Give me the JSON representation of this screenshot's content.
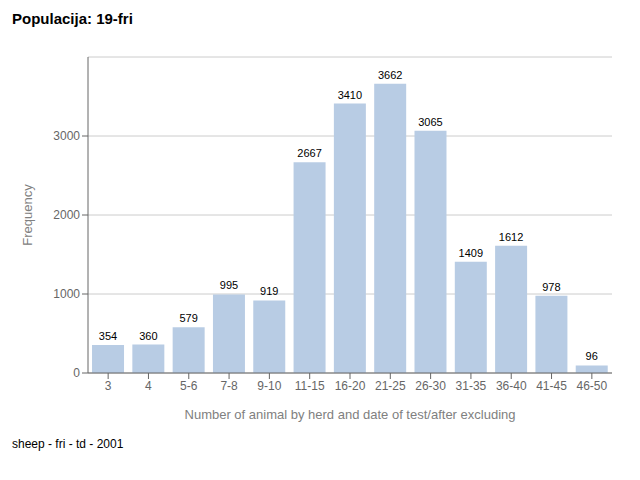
{
  "chart_data": {
    "type": "bar",
    "title": "Populacija: 19-fri",
    "xlabel": "Number of animal by herd and date of test/after excluding",
    "ylabel": "Frequency",
    "annotations": [
      "sheep - fri - td - 2001"
    ],
    "categories": [
      "3",
      "4",
      "5-6",
      "7-8",
      "9-10",
      "11-15",
      "16-20",
      "21-25",
      "26-30",
      "31-35",
      "36-40",
      "41-45",
      "46-50"
    ],
    "values": [
      354,
      360,
      579,
      995,
      919,
      2667,
      3410,
      3662,
      3065,
      1409,
      1612,
      978,
      96
    ],
    "color": "#b8cce4",
    "ylim": [
      0,
      4000
    ],
    "yticks": [
      0,
      1000,
      2000,
      3000
    ],
    "grid": true,
    "data_labels": true
  }
}
